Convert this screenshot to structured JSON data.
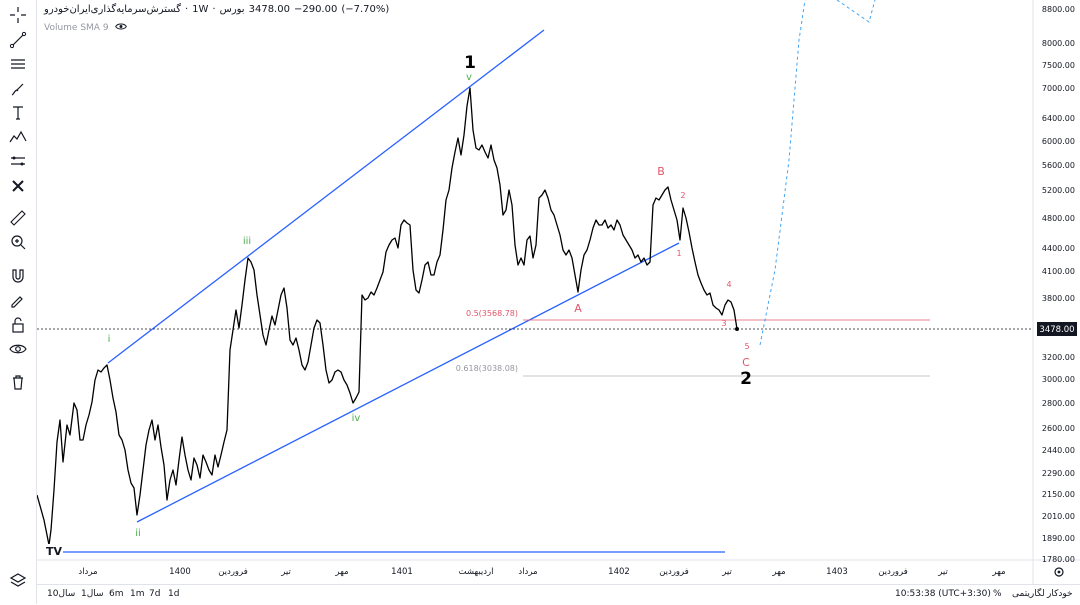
{
  "header": {
    "symbol": "گسترش‌سرمایه‌گذاری‌ایران‌خودرو",
    "interval": "1W",
    "exchange": "بورس",
    "price": "3478.00",
    "change": "−290.00",
    "change_pct": "(−7.70%)"
  },
  "indicator": {
    "label": "Volume SMA 9"
  },
  "price_scale": {
    "labels": [
      "8800.00",
      "8000.00",
      "7500.00",
      "7000.00",
      "6400.00",
      "6000.00",
      "5600.00",
      "5200.00",
      "4800.00",
      "4400.00",
      "4100.00",
      "3800.00",
      "3478.00",
      "3200.00",
      "3000.00",
      "2800.00",
      "2600.00",
      "2440.00",
      "2290.00",
      "2150.00",
      "2010.00",
      "1890.00",
      "1780.00"
    ],
    "current": "3478.00"
  },
  "time_axis": {
    "labels": [
      "مرداد",
      "1400",
      "فروردین",
      "تیر",
      "مهر",
      "1401",
      "اردیبهشت",
      "مرداد",
      "1402",
      "فروردین",
      "تیر",
      "مهر",
      "1403",
      "فروردین",
      "تیر",
      "مهر"
    ]
  },
  "fib": {
    "level_05": "0.5(3568.78)",
    "level_0618": "0.618(3038.08)"
  },
  "waves": {
    "sub_i": "i",
    "sub_ii": "ii",
    "sub_iii": "iii",
    "sub_iv": "iv",
    "sub_v": "v",
    "primary_1": "1",
    "primary_2": "2",
    "corr_a": "A",
    "corr_b": "B",
    "corr_c": "C",
    "c_1": "1",
    "c_2": "2",
    "c_3": "3",
    "c_4": "4",
    "c_5": "5"
  },
  "colors": {
    "channel": "#2962ff",
    "price_line": "#000000",
    "sub_wave": "#4caf50",
    "corr_wave": "#e0566b",
    "projection": "#42a5f5",
    "fib_05": "#e0566b",
    "fib_0618": "#b2b5be"
  },
  "bottom_bar": {
    "timeframes": [
      "10سال",
      "1سال",
      "6m",
      "1m",
      "7d",
      "1d"
    ],
    "clock": "10:53:38 (UTC+3:30)",
    "percent": "%",
    "log": "لگاریتمی",
    "auto": "خودکار"
  },
  "toolbar": {
    "icons": [
      "crosshair-icon",
      "trend-line-icon",
      "horizontal-lines-icon",
      "brush-icon",
      "text-icon",
      "elliott-wave-icon",
      "pattern-icon",
      "remove-icon",
      "ruler-icon",
      "zoom-in-icon",
      "magnet-icon",
      "lock-drawing-icon",
      "lock-icon",
      "eye-icon",
      "trash-icon",
      "layers-icon"
    ]
  }
}
